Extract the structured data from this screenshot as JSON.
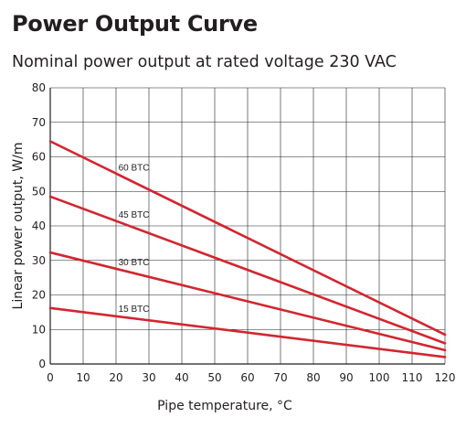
{
  "chart_data": {
    "type": "line",
    "title": "Power Output Curve",
    "subtitle": "Nominal power output at rated voltage 230 VAC",
    "xlabel": "Pipe temperature, °C",
    "ylabel": "Linear power output, W/m",
    "xlim": [
      0,
      120
    ],
    "ylim": [
      0,
      80
    ],
    "xticks": [
      0,
      10,
      20,
      30,
      40,
      50,
      60,
      70,
      80,
      90,
      100,
      110,
      120
    ],
    "yticks": [
      0,
      10,
      20,
      30,
      40,
      50,
      60,
      70,
      80
    ],
    "grid": true,
    "line_color": "#d22630",
    "series": [
      {
        "name": "60 BTC",
        "x": [
          0,
          120
        ],
        "y": [
          64.5,
          8.5
        ]
      },
      {
        "name": "45 BTC",
        "x": [
          0,
          120
        ],
        "y": [
          48.5,
          6.0
        ]
      },
      {
        "name": "30 BTC",
        "x": [
          0,
          120
        ],
        "y": [
          32.3,
          4.0
        ]
      },
      {
        "name": "15 BTC",
        "x": [
          0,
          120
        ],
        "y": [
          16.2,
          2.0
        ]
      }
    ],
    "series_label_x": 21
  }
}
